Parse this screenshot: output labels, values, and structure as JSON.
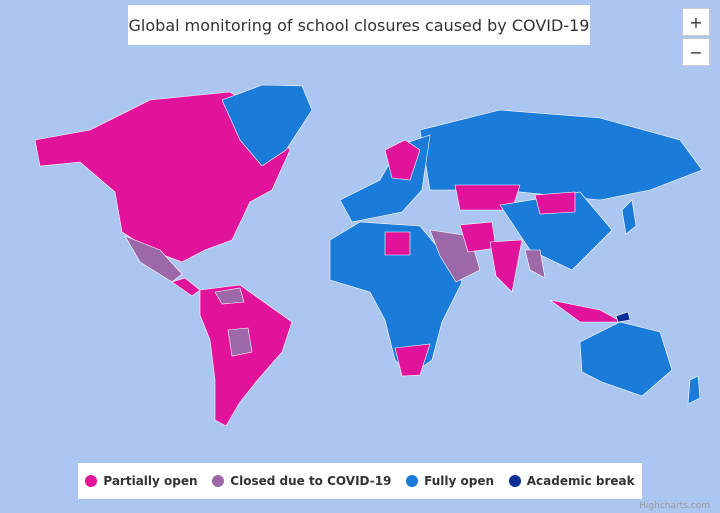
{
  "title": "Global monitoring of school closures caused by COVID-19",
  "zoom_buttons": [
    "+",
    "−"
  ],
  "legend": [
    {
      "label": "Partially open",
      "color": "#e2139b"
    },
    {
      "label": "Closed due to COVID-19",
      "color": "#9c68a8"
    },
    {
      "label": "Fully open",
      "color": "#1b7bd8"
    },
    {
      "label": "Academic break",
      "color": "#0b2e96"
    }
  ],
  "credits": "Highcharts.com"
}
